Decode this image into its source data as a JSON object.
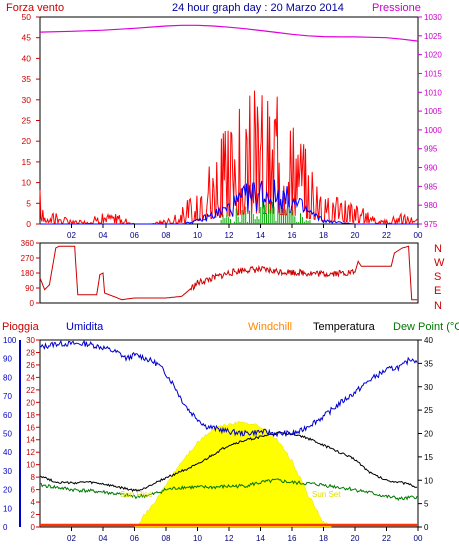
{
  "header": {
    "left_title": "Forza vento",
    "center_title": "24 hour graph day : 20 Marzo 2014",
    "right_title": "Pressione"
  },
  "wind_direction_panel": {
    "compass_labels": [
      "N",
      "W",
      "S",
      "E",
      "N"
    ]
  },
  "bottom_panel": {
    "legend": {
      "rain": "Pioggia",
      "humidity": "Umidita",
      "windchill": "Windchill",
      "temperature": "Temperatura",
      "dewpoint": "Dew Point (°C"
    },
    "annotations": {
      "sunrise": "Sun Rise",
      "sunset": "Sun Set"
    }
  },
  "colors": {
    "wind": "#ff0000",
    "gust": "#0000ff",
    "rain_bars": "#00aa00",
    "pressure": "#dd00dd",
    "direction": "#cc0000",
    "humidity": "#0000cc",
    "temperature": "#000000",
    "dewpoint": "#007700",
    "sun": "#ffff00",
    "windchill": "#ff8800"
  },
  "chart_data": [
    {
      "type": "line",
      "name": "wind-pressure",
      "x_ticks": [
        "02",
        "04",
        "06",
        "08",
        "10",
        "12",
        "14",
        "16",
        "18",
        "20",
        "22",
        "00"
      ],
      "xlim": [
        0,
        24
      ],
      "ylim_left": [
        0,
        50
      ],
      "yticks_left": [
        0,
        5,
        10,
        15,
        20,
        25,
        30,
        35,
        40,
        45,
        50
      ],
      "ylim_right": [
        975,
        1030
      ],
      "yticks_right": [
        975,
        980,
        985,
        990,
        995,
        1000,
        1005,
        1010,
        1015,
        1020,
        1025,
        1030
      ],
      "pressure": {
        "x": [
          0,
          2,
          4,
          6,
          8,
          9,
          10,
          11,
          12,
          13,
          14,
          15,
          16,
          17,
          18,
          19,
          20,
          21,
          22,
          23,
          24
        ],
        "y": [
          1026.0,
          1026.2,
          1026.5,
          1027.0,
          1027.6,
          1027.8,
          1027.8,
          1027.6,
          1027.3,
          1026.9,
          1026.4,
          1025.9,
          1025.4,
          1025.0,
          1024.8,
          1024.7,
          1024.7,
          1024.6,
          1024.5,
          1024.1,
          1023.6
        ]
      },
      "wind_envelope": {
        "x": [
          0,
          0.5,
          1,
          2,
          3,
          4,
          5,
          6,
          7,
          8,
          9,
          10,
          11,
          12,
          13,
          14,
          15,
          16,
          17,
          18,
          19,
          20,
          21,
          22,
          23,
          24
        ],
        "y": [
          7,
          4,
          2,
          1,
          1,
          2,
          2,
          0,
          0,
          1,
          3,
          8,
          14,
          19,
          24,
          26,
          24,
          21,
          14,
          8,
          6,
          4,
          2,
          1,
          2,
          1
        ]
      },
      "gust_envelope": {
        "x": [
          0,
          1,
          3,
          6,
          9,
          10,
          11,
          12,
          13,
          14,
          15,
          16,
          17,
          18,
          20,
          24
        ],
        "y": [
          0,
          0,
          0,
          0,
          0,
          1,
          3,
          5,
          8,
          10,
          9,
          7,
          4,
          1,
          0,
          0
        ]
      }
    },
    {
      "type": "line",
      "name": "wind-direction",
      "xlim": [
        0,
        24
      ],
      "ylim": [
        0,
        360
      ],
      "yticks": [
        0,
        90,
        180,
        270,
        360
      ],
      "x": [
        0,
        0.3,
        0.6,
        1,
        1.2,
        2.2,
        2.4,
        3.6,
        3.8,
        4.0,
        4.1,
        5.2,
        6,
        7,
        8,
        9,
        9.5,
        10,
        11,
        12,
        13,
        14,
        15,
        16,
        17,
        18,
        19,
        20,
        20.2,
        20.4,
        21,
        22,
        22.3,
        22.5,
        23,
        23.4,
        23.6,
        24
      ],
      "y": [
        150,
        80,
        110,
        330,
        340,
        340,
        50,
        50,
        170,
        180,
        60,
        20,
        30,
        30,
        30,
        40,
        80,
        120,
        150,
        180,
        200,
        200,
        190,
        185,
        180,
        175,
        180,
        185,
        250,
        220,
        220,
        220,
        220,
        300,
        330,
        340,
        20,
        20
      ]
    },
    {
      "type": "line",
      "name": "humidity-temperature",
      "xlim": [
        0,
        24
      ],
      "ylim_humidity": [
        0,
        100
      ],
      "yticks_humidity": [
        0,
        10,
        20,
        30,
        40,
        50,
        60,
        70,
        80,
        90,
        100
      ],
      "ylim_rain": [
        0,
        30
      ],
      "yticks_rain": [
        0,
        2,
        4,
        6,
        8,
        10,
        12,
        14,
        16,
        18,
        20,
        22,
        24,
        26,
        28,
        30
      ],
      "ylim_temp": [
        0,
        40
      ],
      "yticks_temp": [
        0,
        5,
        10,
        15,
        20,
        25,
        30,
        35,
        40
      ],
      "humidity": {
        "x": [
          0,
          1,
          2,
          3,
          4,
          5,
          5.5,
          6,
          6.5,
          7,
          7.5,
          8,
          8.5,
          9,
          9.5,
          10,
          10.5,
          11,
          12,
          13,
          14,
          15,
          16,
          16.5,
          17,
          18,
          19,
          20,
          21,
          22,
          23,
          23.5,
          24
        ],
        "y": [
          96,
          98,
          98,
          98,
          96,
          93,
          90,
          92,
          91,
          89,
          87,
          82,
          76,
          68,
          62,
          58,
          54,
          53,
          51,
          50,
          51,
          50,
          50,
          51,
          54,
          59,
          66,
          72,
          79,
          84,
          86,
          90,
          89
        ]
      },
      "temperature": {
        "x": [
          0,
          1,
          2,
          3,
          4,
          5,
          6,
          6.5,
          7,
          8,
          9,
          10,
          11,
          12,
          13,
          14,
          15,
          16,
          17,
          18,
          19,
          20,
          21,
          22,
          23,
          24
        ],
        "y": [
          11,
          9.6,
          9.4,
          9.6,
          9.2,
          8.5,
          7.8,
          8,
          9,
          10.5,
          12,
          13.3,
          15.5,
          17.5,
          18.5,
          19.3,
          20,
          20,
          19,
          17.5,
          16,
          14.5,
          11.5,
          10,
          9.5,
          8.5
        ]
      },
      "dewpoint": {
        "x": [
          0,
          2,
          4,
          6,
          7,
          8,
          9,
          10,
          11,
          12,
          13,
          14,
          15,
          16,
          17,
          18,
          19,
          20,
          21,
          22,
          23,
          24
        ],
        "y": [
          9,
          8,
          7.5,
          6.5,
          6.8,
          8,
          8.5,
          8.5,
          8.5,
          8.7,
          8.8,
          9.5,
          10,
          9.5,
          9.3,
          9,
          8.5,
          8,
          7.3,
          6.5,
          6,
          6.5
        ]
      },
      "solar": {
        "x": [
          6,
          7,
          8,
          9,
          10,
          11,
          12,
          13,
          14,
          15,
          16,
          17,
          17.5,
          18,
          18.5
        ],
        "y": [
          0,
          4,
          9,
          14,
          18,
          21,
          22,
          22.5,
          21.5,
          19,
          14,
          7,
          4,
          1,
          0
        ]
      },
      "rain": {
        "total": 0
      }
    }
  ]
}
